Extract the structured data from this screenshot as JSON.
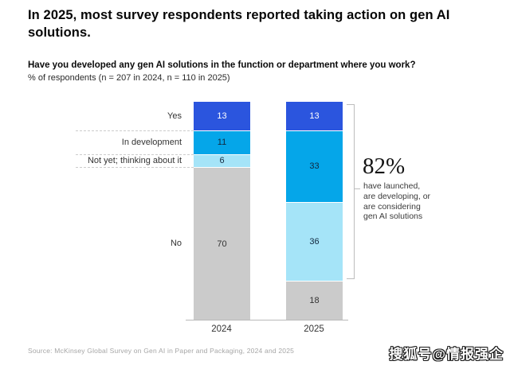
{
  "header": {
    "title": "In 2025, most survey respondents reported taking action on gen AI solutions.",
    "question": "Have you developed any gen AI solutions in the function or department where you work?",
    "subtitle": "% of respondents (n = 207 in 2024, n = 110 in 2025)"
  },
  "chart_data": {
    "type": "bar",
    "stacked": true,
    "orientation": "vertical",
    "title": "Have you developed any gen AI solutions in the function or department where you work?",
    "ylabel": "% of respondents",
    "ylim": [
      0,
      100
    ],
    "grid": false,
    "legend_position": "left-category-labels",
    "categories": [
      "2024",
      "2025"
    ],
    "series": [
      {
        "name": "Yes",
        "values": [
          13,
          13
        ],
        "color": "#2B55DE",
        "value_color": "#ffffff"
      },
      {
        "name": "In development",
        "values": [
          11,
          33
        ],
        "color": "#05A6E9",
        "value_color": "#12283E"
      },
      {
        "name": "Not yet; thinking about it",
        "values": [
          6,
          36
        ],
        "color": "#A5E4F8",
        "value_color": "#12283E"
      },
      {
        "name": "No",
        "values": [
          70,
          18
        ],
        "color": "#CBCBCB",
        "value_color": "#333333"
      }
    ]
  },
  "annotation": {
    "percent": "82%",
    "line1": "have launched,",
    "line2": "are developing, or",
    "line3": "are considering",
    "line4": "gen AI solutions"
  },
  "footer": {
    "source": "Source: McKinsey Global Survey on Gen AI in Paper and Packaging, 2024 and 2025",
    "watermark": "搜狐号@情报强企"
  }
}
